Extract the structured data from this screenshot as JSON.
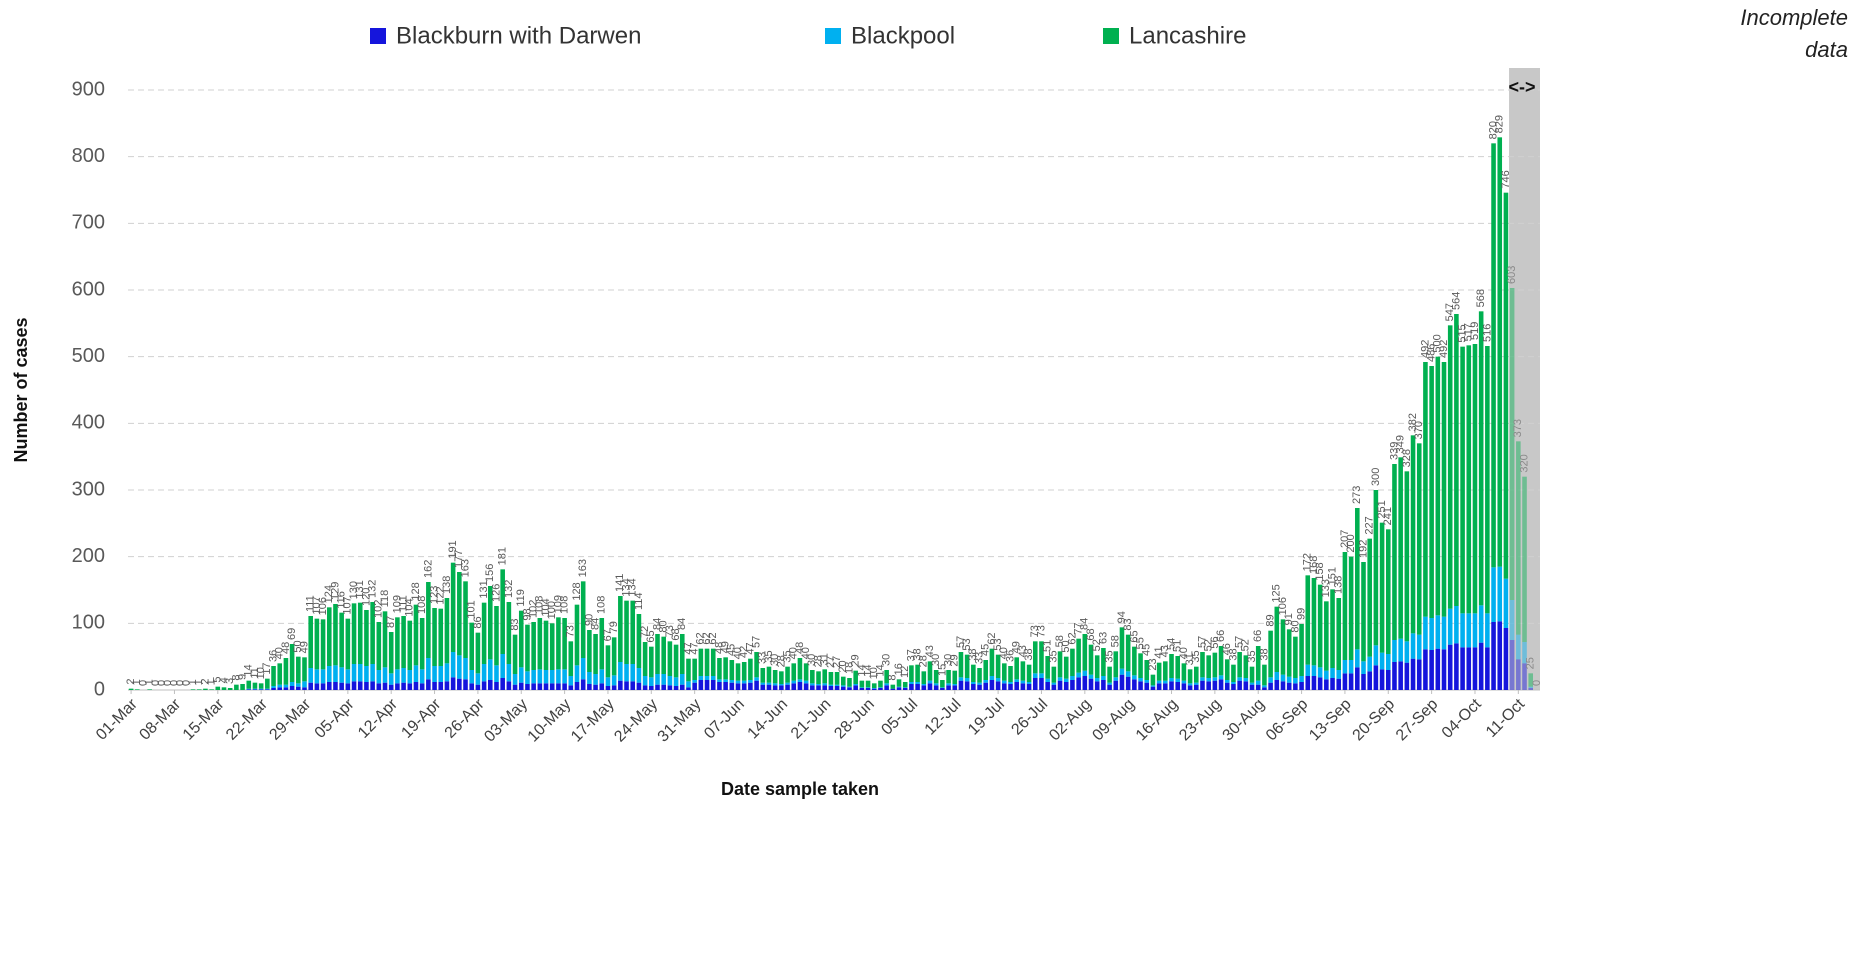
{
  "chart_data": {
    "type": "stacked-bar",
    "x_label": "Date sample taken",
    "y_label": "Number of cases",
    "ylim": [
      0,
      900
    ],
    "yticks": [
      0,
      100,
      200,
      300,
      400,
      500,
      600,
      700,
      800,
      900
    ],
    "grid": true,
    "legend_position": "top",
    "annotation": {
      "text": "Incomplete data",
      "marker": "<->",
      "from_index": 223
    },
    "categories": [
      "01-Mar",
      null,
      null,
      null,
      null,
      null,
      null,
      "08-Mar",
      null,
      null,
      null,
      null,
      null,
      null,
      "15-Mar",
      null,
      null,
      null,
      null,
      null,
      null,
      "22-Mar",
      null,
      null,
      null,
      null,
      null,
      null,
      "29-Mar",
      null,
      null,
      null,
      null,
      null,
      null,
      "05-Apr",
      null,
      null,
      null,
      null,
      null,
      null,
      "12-Apr",
      null,
      null,
      null,
      null,
      null,
      null,
      "19-Apr",
      null,
      null,
      null,
      null,
      null,
      null,
      "26-Apr",
      null,
      null,
      null,
      null,
      null,
      null,
      "03-May",
      null,
      null,
      null,
      null,
      null,
      null,
      "10-May",
      null,
      null,
      null,
      null,
      null,
      null,
      "17-May",
      null,
      null,
      null,
      null,
      null,
      null,
      "24-May",
      null,
      null,
      null,
      null,
      null,
      null,
      "31-May",
      null,
      null,
      null,
      null,
      null,
      null,
      "07-Jun",
      null,
      null,
      null,
      null,
      null,
      null,
      "14-Jun",
      null,
      null,
      null,
      null,
      null,
      null,
      "21-Jun",
      null,
      null,
      null,
      null,
      null,
      null,
      "28-Jun",
      null,
      null,
      null,
      null,
      null,
      null,
      "05-Jul",
      null,
      null,
      null,
      null,
      null,
      null,
      "12-Jul",
      null,
      null,
      null,
      null,
      null,
      null,
      "19-Jul",
      null,
      null,
      null,
      null,
      null,
      null,
      "26-Jul",
      null,
      null,
      null,
      null,
      null,
      null,
      "02-Aug",
      null,
      null,
      null,
      null,
      null,
      null,
      "09-Aug",
      null,
      null,
      null,
      null,
      null,
      null,
      "16-Aug",
      null,
      null,
      null,
      null,
      null,
      null,
      "23-Aug",
      null,
      null,
      null,
      null,
      null,
      null,
      "30-Aug",
      null,
      null,
      null,
      null,
      null,
      null,
      "06-Sep",
      null,
      null,
      null,
      null,
      null,
      null,
      "13-Sep",
      null,
      null,
      null,
      null,
      null,
      null,
      "20-Sep",
      null,
      null,
      null,
      null,
      null,
      null,
      "27-Sep",
      null,
      null,
      null,
      null,
      null,
      null,
      "04-Oct",
      null,
      null,
      null,
      null,
      null,
      null,
      "11-Oct",
      null,
      null,
      null
    ],
    "series": [
      {
        "name": "Blackburn with Darwen",
        "color": "#1515dc",
        "values": [
          0,
          0,
          0,
          0,
          0,
          0,
          0,
          0,
          0,
          0,
          0,
          0,
          0,
          0,
          0,
          0,
          0,
          0,
          0,
          1,
          1,
          1,
          1,
          3,
          4,
          4,
          6,
          5,
          4,
          11,
          10,
          10,
          12,
          12,
          11,
          10,
          13,
          13,
          12,
          13,
          10,
          11,
          8,
          10,
          11,
          10,
          12,
          10,
          16,
          12,
          12,
          13,
          19,
          17,
          16,
          10,
          8,
          13,
          15,
          12,
          18,
          13,
          8,
          11,
          9,
          10,
          10,
          10,
          10,
          10,
          10,
          7,
          12,
          16,
          9,
          8,
          10,
          6,
          7,
          14,
          13,
          13,
          11,
          7,
          6,
          8,
          8,
          7,
          6,
          8,
          4,
          11,
          15,
          15,
          15,
          12,
          12,
          11,
          10,
          10,
          11,
          14,
          8,
          8,
          7,
          7,
          8,
          10,
          12,
          10,
          7,
          7,
          7,
          6,
          6,
          5,
          4,
          7,
          3,
          3,
          2,
          3,
          7,
          2,
          4,
          3,
          9,
          9,
          7,
          10,
          7,
          3,
          7,
          7,
          14,
          13,
          9,
          8,
          11,
          15,
          13,
          10,
          9,
          12,
          10,
          9,
          18,
          18,
          12,
          8,
          14,
          12,
          15,
          19,
          21,
          17,
          13,
          15,
          8,
          14,
          23,
          20,
          16,
          13,
          11,
          5,
          10,
          10,
          13,
          12,
          10,
          7,
          8,
          14,
          13,
          14,
          16,
          11,
          9,
          14,
          13,
          8,
          8,
          4,
          11,
          15,
          13,
          11,
          10,
          12,
          21,
          21,
          19,
          16,
          18,
          17,
          25,
          25,
          34,
          24,
          28,
          37,
          31,
          30,
          42,
          43,
          41,
          47,
          46,
          61,
          60,
          62,
          61,
          68,
          70,
          64,
          64,
          64,
          71,
          64,
          102,
          103,
          93,
          75,
          46,
          40,
          3,
          0
        ]
      },
      {
        "name": "Blackpool",
        "color": "#00b0f0",
        "values": [
          0,
          0,
          0,
          0,
          0,
          0,
          0,
          0,
          0,
          0,
          0,
          0,
          0,
          0,
          0,
          0,
          0,
          0,
          0,
          1,
          1,
          1,
          1,
          3,
          4,
          4,
          6,
          5,
          9,
          22,
          21,
          21,
          24,
          25,
          23,
          21,
          26,
          26,
          24,
          26,
          20,
          23,
          17,
          21,
          22,
          20,
          25,
          21,
          32,
          24,
          24,
          27,
          38,
          35,
          32,
          20,
          17,
          26,
          31,
          25,
          36,
          26,
          16,
          23,
          19,
          20,
          21,
          20,
          20,
          21,
          21,
          14,
          25,
          32,
          18,
          16,
          21,
          13,
          15,
          28,
          26,
          26,
          22,
          14,
          13,
          16,
          16,
          14,
          13,
          16,
          9,
          4,
          6,
          6,
          6,
          4,
          4,
          4,
          4,
          4,
          4,
          5,
          3,
          3,
          3,
          2,
          3,
          4,
          4,
          4,
          3,
          2,
          3,
          2,
          2,
          2,
          1,
          2,
          1,
          1,
          1,
          1,
          3,
          0,
          1,
          1,
          3,
          3,
          2,
          4,
          3,
          1,
          3,
          2,
          5,
          5,
          3,
          3,
          4,
          6,
          5,
          4,
          3,
          4,
          4,
          3,
          7,
          7,
          5,
          3,
          5,
          5,
          6,
          7,
          8,
          6,
          5,
          6,
          3,
          5,
          9,
          8,
          6,
          5,
          4,
          2,
          4,
          4,
          5,
          5,
          4,
          3,
          3,
          5,
          5,
          5,
          6,
          4,
          3,
          5,
          5,
          3,
          6,
          3,
          8,
          12,
          10,
          9,
          8,
          9,
          17,
          16,
          15,
          13,
          15,
          13,
          20,
          20,
          27,
          19,
          22,
          30,
          25,
          24,
          33,
          34,
          32,
          38,
          37,
          49,
          48,
          50,
          49,
          54,
          56,
          51,
          51,
          51,
          56,
          51,
          82,
          82,
          74,
          60,
          37,
          32,
          2,
          0
        ]
      },
      {
        "name": "Lancashire",
        "color": "#00b050",
        "values": [
          2,
          1,
          0,
          1,
          0,
          0,
          0,
          0,
          0,
          0,
          1,
          1,
          2,
          1,
          5,
          4,
          3,
          8,
          9,
          12,
          9,
          8,
          15,
          30,
          32,
          40,
          57,
          40,
          36,
          78,
          76,
          75,
          88,
          92,
          82,
          76,
          91,
          92,
          84,
          93,
          72,
          84,
          62,
          78,
          78,
          74,
          91,
          77,
          114,
          87,
          86,
          98,
          134,
          125,
          115,
          71,
          61,
          92,
          110,
          89,
          127,
          93,
          59,
          85,
          70,
          72,
          77,
          74,
          70,
          78,
          77,
          52,
          91,
          115,
          63,
          60,
          77,
          48,
          57,
          99,
          95,
          95,
          81,
          51,
          46,
          60,
          56,
          52,
          49,
          60,
          34,
          32,
          41,
          41,
          41,
          32,
          33,
          30,
          26,
          28,
          32,
          38,
          22,
          24,
          20,
          19,
          24,
          26,
          32,
          26,
          20,
          19,
          21,
          19,
          19,
          13,
          13,
          20,
          10,
          10,
          7,
          10,
          20,
          6,
          11,
          8,
          25,
          26,
          19,
          29,
          20,
          11,
          20,
          20,
          38,
          35,
          26,
          22,
          30,
          41,
          35,
          26,
          24,
          33,
          29,
          26,
          48,
          48,
          34,
          24,
          39,
          33,
          41,
          51,
          55,
          45,
          34,
          42,
          24,
          39,
          62,
          55,
          43,
          37,
          30,
          16,
          27,
          29,
          36,
          34,
          26,
          21,
          24,
          38,
          34,
          37,
          44,
          31,
          26,
          38,
          34,
          24,
          52,
          31,
          70,
          98,
          83,
          71,
          62,
          78,
          134,
          131,
          124,
          104,
          118,
          108,
          162,
          155,
          212,
          149,
          177,
          233,
          195,
          187,
          264,
          272,
          255,
          297,
          287,
          382,
          378,
          388,
          382,
          425,
          438,
          400,
          402,
          404,
          441,
          401,
          636,
          644,
          579,
          468,
          290,
          248,
          20,
          0
        ]
      }
    ],
    "totals": [
      2,
      1,
      0,
      1,
      0,
      0,
      0,
      0,
      0,
      0,
      1,
      1,
      2,
      1,
      5,
      4,
      3,
      8,
      9,
      14,
      11,
      10,
      17,
      36,
      40,
      48,
      69,
      50,
      49,
      111,
      107,
      106,
      124,
      129,
      116,
      107,
      130,
      131,
      120,
      132,
      102,
      118,
      87,
      109,
      111,
      104,
      128,
      108,
      162,
      123,
      122,
      138,
      191,
      177,
      163,
      101,
      86,
      131,
      156,
      126,
      181,
      132,
      83,
      119,
      98,
      102,
      108,
      104,
      100,
      109,
      108,
      73,
      128,
      163,
      90,
      84,
      108,
      67,
      79,
      141,
      134,
      134,
      114,
      72,
      65,
      84,
      80,
      73,
      68,
      84,
      47,
      47,
      62,
      62,
      62,
      48,
      49,
      45,
      40,
      42,
      47,
      57,
      33,
      35,
      30,
      28,
      35,
      40,
      48,
      40,
      30,
      28,
      31,
      27,
      27,
      20,
      18,
      29,
      14,
      14,
      10,
      14,
      30,
      8,
      16,
      12,
      37,
      38,
      28,
      43,
      30,
      15,
      30,
      29,
      57,
      53,
      38,
      33,
      45,
      62,
      53,
      40,
      36,
      49,
      43,
      38,
      73,
      73,
      51,
      35,
      58,
      50,
      62,
      77,
      84,
      68,
      52,
      63,
      35,
      58,
      94,
      83,
      65,
      55,
      45,
      23,
      41,
      43,
      54,
      51,
      40,
      31,
      35,
      57,
      52,
      56,
      66,
      46,
      38,
      57,
      52,
      35,
      66,
      38,
      89,
      125,
      106,
      91,
      80,
      99,
      172,
      168,
      158,
      133,
      151,
      138,
      207,
      200,
      273,
      192,
      227,
      300,
      251,
      241,
      339,
      349,
      328,
      382,
      370,
      492,
      486,
      500,
      492,
      547,
      564,
      515,
      517,
      519,
      568,
      516,
      820,
      829,
      746,
      603,
      373,
      320,
      25,
      0
    ]
  }
}
